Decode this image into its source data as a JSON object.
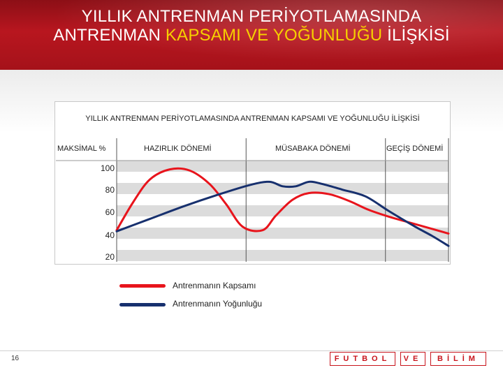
{
  "header": {
    "title_line1": "YILLIK ANTRENMAN PERİYOTLAMASINDA",
    "title_line2_prefix": "ANTRENMAN ",
    "title_line2_highlight": "KAPSAMI VE YOĞUNLUĞU",
    "title_line2_suffix": " İLİŞKİSİ",
    "bg_color": "#b0141c",
    "highlight_color": "#f6d000"
  },
  "chart_data": {
    "type": "line",
    "title": "YILLIK ANTRENMAN PERİYOTLAMASINDA ANTRENMAN KAPSAMI VE YOĞUNLUĞU İLİŞKİSİ",
    "ylabel": "MAKSİMAL %",
    "yticks": [
      "100",
      "80",
      "60",
      "40",
      "20"
    ],
    "ylim": [
      20,
      100
    ],
    "phases": [
      "HAZIRLIK DÖNEMİ",
      "MÜSABAKA DÖNEMİ",
      "GEÇİŞ DÖNEMİ"
    ],
    "x_range": [
      0,
      100
    ],
    "phase_bounds": [
      0,
      39,
      81,
      100
    ],
    "grid": true,
    "series": [
      {
        "name": "Antrenmanın Kapsamı",
        "color": "#e8141c",
        "x": [
          0,
          5,
          10,
          16,
          22,
          28,
          33,
          38,
          44,
          48,
          53,
          58,
          64,
          70,
          76,
          82,
          88,
          94,
          100
        ],
        "y": [
          45,
          70,
          90,
          99,
          98,
          86,
          68,
          48,
          45,
          58,
          72,
          78,
          77,
          71,
          63,
          57,
          52,
          47,
          42
        ]
      },
      {
        "name": "Antrenmanın Yoğunluğu",
        "color": "#17306e",
        "x": [
          0,
          10,
          20,
          30,
          40,
          46,
          50,
          54,
          58,
          62,
          68,
          75,
          82,
          90,
          95,
          100
        ],
        "y": [
          44,
          55,
          66,
          76,
          85,
          88,
          84,
          84,
          88,
          86,
          81,
          75,
          62,
          48,
          40,
          31
        ]
      }
    ]
  },
  "legend": {
    "items": [
      {
        "label": "Antrenmanın Kapsamı",
        "color": "#e8141c"
      },
      {
        "label": "Antrenmanın Yoğunluğu",
        "color": "#17306e"
      }
    ]
  },
  "footer": {
    "page_number": "16",
    "brand_1": "FUTBOL",
    "brand_2": "VE",
    "brand_3": "BİLİM",
    "brand_color": "#c8141c"
  }
}
